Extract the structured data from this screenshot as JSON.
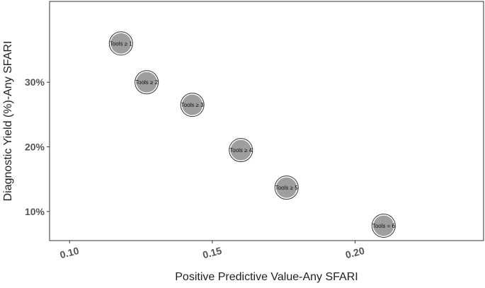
{
  "chart_data": {
    "type": "scatter",
    "xlabel": "Positive Predictive Value-Any SFARI",
    "ylabel": "Diagnostic Yield (%)-Any SFARI",
    "xlim": [
      0.093,
      0.245
    ],
    "ylim": [
      5.5,
      42.5
    ],
    "x_ticks": [
      {
        "value": 0.1,
        "label": "0.10"
      },
      {
        "value": 0.15,
        "label": "0.15"
      },
      {
        "value": 0.2,
        "label": "0.20"
      }
    ],
    "y_ticks": [
      {
        "value": 10,
        "label": "10%"
      },
      {
        "value": 20,
        "label": "20%"
      },
      {
        "value": 30,
        "label": "30%"
      }
    ],
    "grid": false,
    "points": [
      {
        "x": 0.118,
        "y": 36.0,
        "label": "Tools ≥ 1"
      },
      {
        "x": 0.127,
        "y": 30.0,
        "label": "Tools ≥ 2"
      },
      {
        "x": 0.143,
        "y": 26.5,
        "label": "Tools ≥ 3"
      },
      {
        "x": 0.16,
        "y": 19.5,
        "label": "Tools ≥ 4"
      },
      {
        "x": 0.176,
        "y": 13.7,
        "label": "Tools ≥ 5"
      },
      {
        "x": 0.21,
        "y": 7.8,
        "label": "Tools = 6"
      }
    ],
    "colors": {
      "point_fill": "#9e9e9e",
      "point_outline": "#333333"
    }
  }
}
